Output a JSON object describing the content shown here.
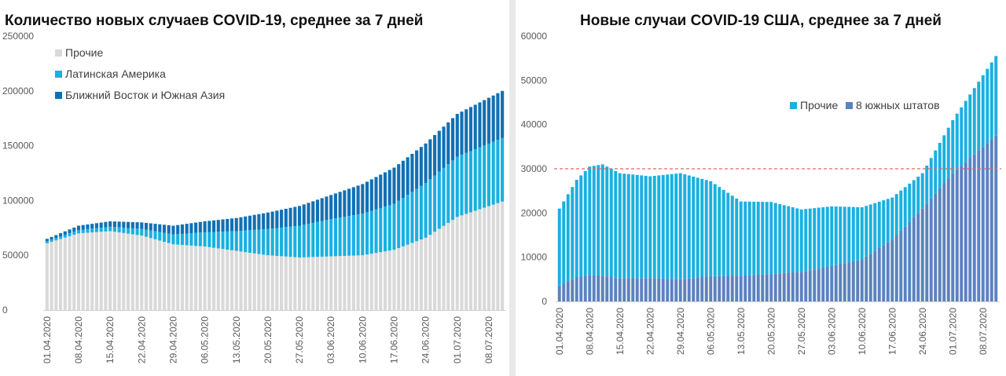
{
  "charts": [
    {
      "title": "Количество новых случаев COVID-19, среднее за 7 дней",
      "chart_data": {
        "type": "bar",
        "stacked": true,
        "ylim": [
          0,
          250000
        ],
        "yticks": [
          0,
          50000,
          100000,
          150000,
          200000,
          250000
        ],
        "ytick_labels": [
          "0",
          "50000",
          "100000",
          "150000",
          "200000",
          "250000"
        ],
        "xtick_labels": [
          "01.04.2020",
          "08.04.2020",
          "15.04.2020",
          "22.04.2020",
          "29.04.2020",
          "06.05.2020",
          "13.05.2020",
          "20.05.2020",
          "27.05.2020",
          "03.06.2020",
          "10.06.2020",
          "17.06.2020",
          "24.06.2020",
          "01.07.2020",
          "08.07.2020"
        ],
        "days": 102,
        "legend_position": "top-left",
        "series": [
          {
            "name": "Прочие",
            "color": "#d9d9d9",
            "knots": [
              [
                0,
                61000
              ],
              [
                7,
                70000
              ],
              [
                14,
                72000
              ],
              [
                21,
                68000
              ],
              [
                28,
                60000
              ],
              [
                35,
                58000
              ],
              [
                42,
                54000
              ],
              [
                49,
                50000
              ],
              [
                56,
                48000
              ],
              [
                63,
                49000
              ],
              [
                70,
                50000
              ],
              [
                77,
                55000
              ],
              [
                84,
                66000
              ],
              [
                91,
                85000
              ],
              [
                101,
                99000
              ]
            ]
          },
          {
            "name": "Латинская Америка",
            "color": "#1ab0e0",
            "knots": [
              [
                0,
                2000
              ],
              [
                7,
                3000
              ],
              [
                14,
                4000
              ],
              [
                21,
                6000
              ],
              [
                28,
                9000
              ],
              [
                35,
                13000
              ],
              [
                42,
                18000
              ],
              [
                49,
                24000
              ],
              [
                56,
                29000
              ],
              [
                63,
                34000
              ],
              [
                70,
                38000
              ],
              [
                77,
                42000
              ],
              [
                84,
                50000
              ],
              [
                91,
                55000
              ],
              [
                101,
                58000
              ]
            ]
          },
          {
            "name": "Ближний Восток и Южная Азия",
            "color": "#1170b4",
            "knots": [
              [
                0,
                2000
              ],
              [
                7,
                4000
              ],
              [
                14,
                5000
              ],
              [
                21,
                6000
              ],
              [
                28,
                8000
              ],
              [
                35,
                10000
              ],
              [
                42,
                12000
              ],
              [
                49,
                15000
              ],
              [
                56,
                18000
              ],
              [
                63,
                22000
              ],
              [
                70,
                27000
              ],
              [
                77,
                33000
              ],
              [
                84,
                36000
              ],
              [
                91,
                39000
              ],
              [
                101,
                43000
              ]
            ]
          }
        ]
      }
    },
    {
      "title": "Новые случаи COVID-19  США, среднее за 7 дней",
      "chart_data": {
        "type": "bar",
        "stacked": true,
        "ylim": [
          0,
          60000
        ],
        "yticks": [
          0,
          10000,
          20000,
          30000,
          40000,
          50000,
          60000
        ],
        "ytick_labels": [
          "0",
          "10000",
          "20000",
          "30000",
          "40000",
          "50000",
          "60000"
        ],
        "xtick_labels": [
          "01.04.2020",
          "08.04.2020",
          "15.04.2020",
          "22.04.2020",
          "29.04.2020",
          "06.05.2020",
          "13.05.2020",
          "20.05.2020",
          "27.05.2020",
          "03.06.2020",
          "10.06.2020",
          "17.06.2020",
          "24.06.2020",
          "01.07.2020",
          "08.07.2020"
        ],
        "days": 102,
        "reference_line": {
          "value": 30000,
          "color": "#e06666",
          "style": "dashed"
        },
        "legend_position": "top-right",
        "series": [
          {
            "name": "8 южных штатов",
            "color": "#5b82c0",
            "knots": [
              [
                0,
                3600
              ],
              [
                4,
                5500
              ],
              [
                7,
                6000
              ],
              [
                10,
                5800
              ],
              [
                14,
                5200
              ],
              [
                21,
                5300
              ],
              [
                28,
                5000
              ],
              [
                35,
                5700
              ],
              [
                42,
                5800
              ],
              [
                49,
                6200
              ],
              [
                56,
                6700
              ],
              [
                63,
                8000
              ],
              [
                70,
                9500
              ],
              [
                77,
                14000
              ],
              [
                84,
                21000
              ],
              [
                91,
                29000
              ],
              [
                101,
                37500
              ]
            ]
          },
          {
            "name": "Прочие",
            "color": "#1ab0e0",
            "knots": [
              [
                0,
                17400
              ],
              [
                4,
                22000
              ],
              [
                7,
                24500
              ],
              [
                10,
                25200
              ],
              [
                14,
                23800
              ],
              [
                21,
                23000
              ],
              [
                28,
                24000
              ],
              [
                35,
                21500
              ],
              [
                42,
                16800
              ],
              [
                49,
                16300
              ],
              [
                56,
                14100
              ],
              [
                63,
                13500
              ],
              [
                70,
                11800
              ],
              [
                77,
                9500
              ],
              [
                84,
                8000
              ],
              [
                91,
                12000
              ],
              [
                101,
                18000
              ]
            ]
          }
        ]
      }
    }
  ]
}
